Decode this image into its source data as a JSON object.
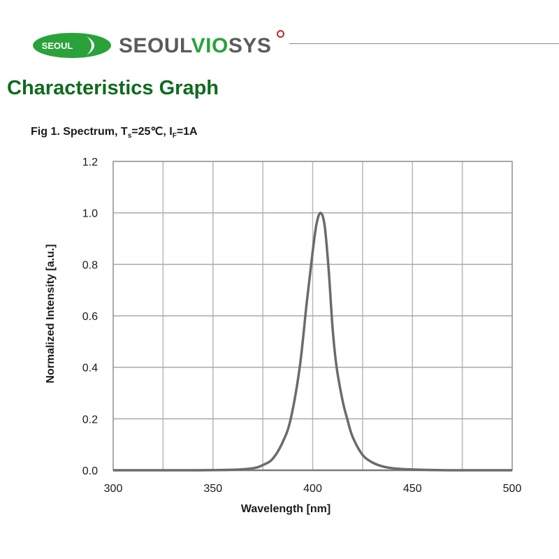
{
  "header": {
    "logo_badge_text": "SEOUL",
    "brand_part1": "SEOUL",
    "brand_part2": "VIO",
    "brand_part3": "SYS",
    "colors": {
      "brand_green": "#2aa23a",
      "brand_gray": "#5b5b5b",
      "title_green": "#0e6b1e",
      "accent_red": "#c0262a"
    }
  },
  "page": {
    "title": "Characteristics Graph",
    "figure_caption_prefix": "Fig 1. Spectrum, T",
    "figure_caption_sub1": "s",
    "figure_caption_mid": "=25℃, I",
    "figure_caption_sub2": "F",
    "figure_caption_suffix": "=1A"
  },
  "chart_data": {
    "type": "line",
    "title": "Fig 1. Spectrum, Ts=25℃, IF=1A",
    "xlabel": "Wavelength [nm]",
    "ylabel": "Normalized Intensity [a.u.]",
    "xlim": [
      300,
      500
    ],
    "ylim": [
      0,
      1.2
    ],
    "x_ticks": [
      300,
      350,
      400,
      450,
      500
    ],
    "y_ticks": [
      "0.0",
      "0.2",
      "0.4",
      "0.6",
      "0.8",
      "1.0",
      "1.2"
    ],
    "grid": true,
    "x_gridlines": [
      300,
      325,
      350,
      375,
      400,
      425,
      450,
      475,
      500
    ],
    "legend": null,
    "series": [
      {
        "name": "Spectrum",
        "color": "#6b6b6b",
        "x": [
          300,
          340,
          360,
          370,
          375,
          380,
          385,
          389,
          393.5,
          397,
          400,
          402,
          404,
          406,
          408,
          410,
          412,
          415,
          417.3,
          420,
          425,
          430,
          435,
          440,
          450,
          470,
          500
        ],
        "y": [
          0.0,
          0.0,
          0.002,
          0.008,
          0.02,
          0.045,
          0.11,
          0.2,
          0.4,
          0.65,
          0.85,
          0.96,
          1.0,
          0.95,
          0.78,
          0.55,
          0.4,
          0.27,
          0.2,
          0.13,
          0.06,
          0.03,
          0.015,
          0.008,
          0.003,
          0.0,
          0.0
        ]
      }
    ],
    "peak_wavelength": 404
  }
}
